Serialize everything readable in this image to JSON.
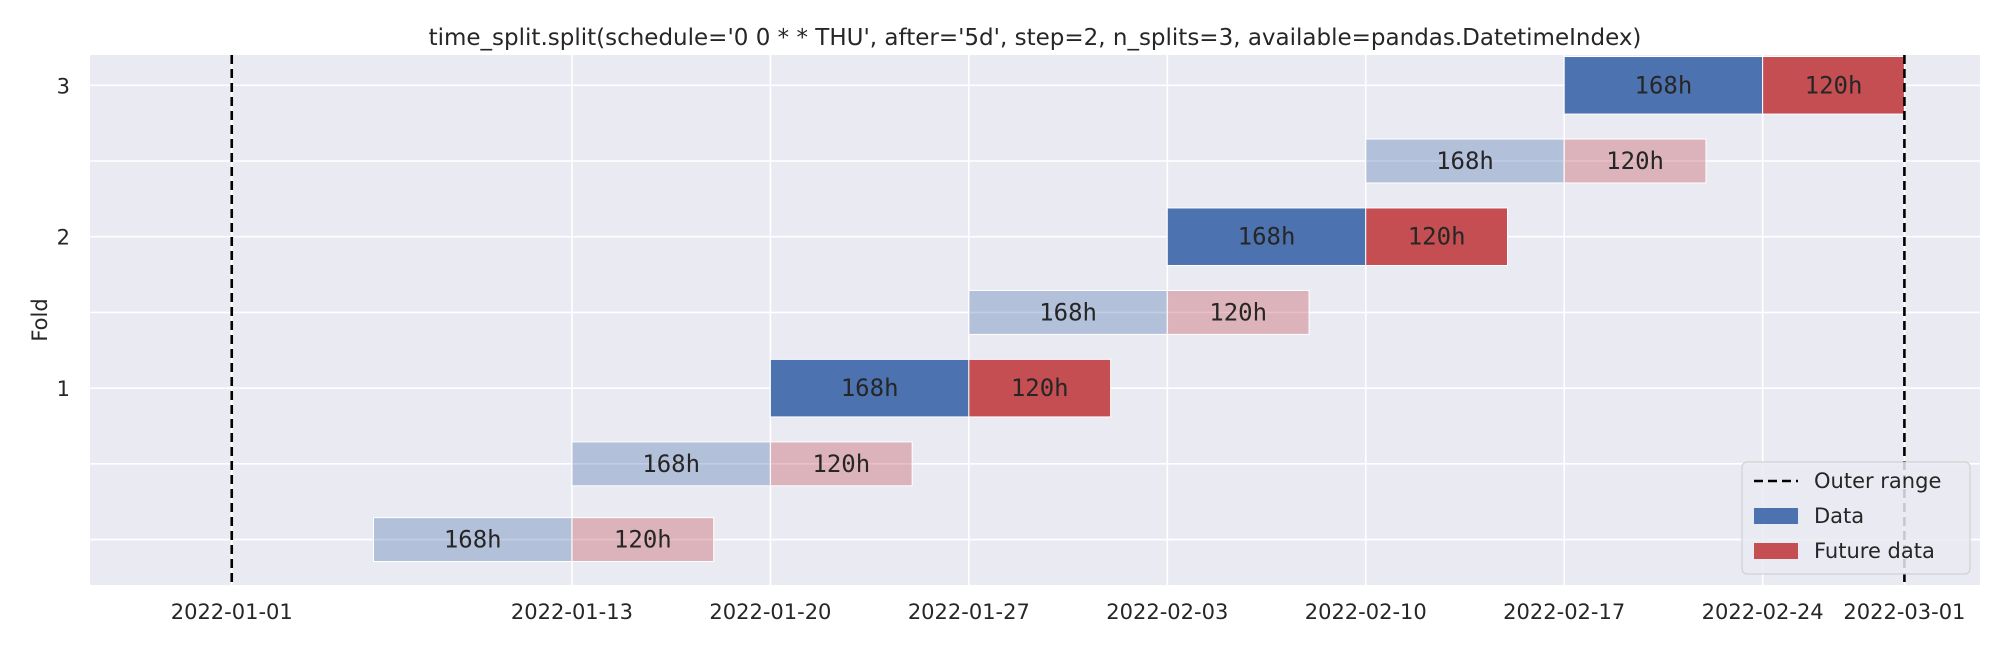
{
  "chart_data": {
    "type": "bar",
    "orientation": "horizontal-timeline",
    "title": "time_split.split(schedule='0 0 * * THU', after='5d', step=2, n_splits=3, available=pandas.DatetimeIndex)",
    "xlabel": "",
    "ylabel": "Fold",
    "xlim": [
      "2021-12-27T00:00",
      "2022-03-03T16:00"
    ],
    "ylim": [
      -0.3,
      3.2
    ],
    "outer_range": [
      "2022-01-01",
      "2022-03-01"
    ],
    "x_ticks": [
      "2022-01-01",
      "2022-01-13",
      "2022-01-20",
      "2022-01-27",
      "2022-02-03",
      "2022-02-10",
      "2022-02-17",
      "2022-02-24",
      "2022-03-01"
    ],
    "y_ticks": [
      1,
      2,
      3
    ],
    "grid": true,
    "legend_position": "lower-right",
    "colors": {
      "background": "#eaeaf2",
      "grid": "#ffffff",
      "data": "#4c72b0",
      "future": "#c44e52",
      "outer": "#000000",
      "text": "#262626"
    },
    "legend": [
      {
        "label": "Outer range",
        "kind": "dashed-line"
      },
      {
        "label": "Data",
        "kind": "patch",
        "color": "#4c72b0"
      },
      {
        "label": "Future data",
        "kind": "patch",
        "color": "#c44e52"
      }
    ],
    "splits": [
      {
        "y": 0,
        "data_start": "2022-01-06",
        "data_end": "2022-01-13",
        "future_end": "2022-01-18",
        "data_label": "168h",
        "future_label": "120h",
        "faded": true
      },
      {
        "y": 0.5,
        "data_start": "2022-01-13",
        "data_end": "2022-01-20",
        "future_end": "2022-01-25",
        "data_label": "168h",
        "future_label": "120h",
        "faded": true
      },
      {
        "y": 1,
        "data_start": "2022-01-20",
        "data_end": "2022-01-27",
        "future_end": "2022-02-01",
        "data_label": "168h",
        "future_label": "120h",
        "faded": false
      },
      {
        "y": 1.5,
        "data_start": "2022-01-27",
        "data_end": "2022-02-03",
        "future_end": "2022-02-08",
        "data_label": "168h",
        "future_label": "120h",
        "faded": true
      },
      {
        "y": 2,
        "data_start": "2022-02-03",
        "data_end": "2022-02-10",
        "future_end": "2022-02-15",
        "data_label": "168h",
        "future_label": "120h",
        "faded": false
      },
      {
        "y": 2.5,
        "data_start": "2022-02-10",
        "data_end": "2022-02-17",
        "future_end": "2022-02-22",
        "data_label": "168h",
        "future_label": "120h",
        "faded": true
      },
      {
        "y": 3,
        "data_start": "2022-02-17",
        "data_end": "2022-02-24",
        "future_end": "2022-03-01",
        "data_label": "168h",
        "future_label": "120h",
        "faded": false
      }
    ]
  }
}
